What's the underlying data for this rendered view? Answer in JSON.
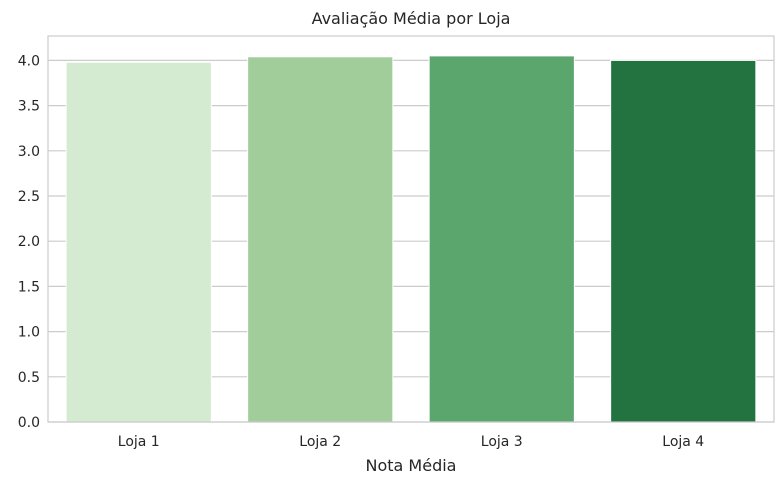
{
  "chart_data": {
    "type": "bar",
    "title": "Avaliação Média por Loja",
    "xlabel": "Nota Média",
    "ylabel": "",
    "categories": [
      "Loja 1",
      "Loja 2",
      "Loja 3",
      "Loja 4"
    ],
    "values": [
      3.98,
      4.04,
      4.05,
      4.0
    ],
    "colors": [
      "#d5ebd1",
      "#a0cd9a",
      "#5aa66d",
      "#22733f"
    ],
    "ylim": [
      0,
      4.27
    ],
    "yticks": [
      0.0,
      0.5,
      1.0,
      1.5,
      2.0,
      2.5,
      3.0,
      3.5,
      4.0
    ],
    "ytick_labels": [
      "0.0",
      "0.5",
      "1.0",
      "1.5",
      "2.0",
      "2.5",
      "3.0",
      "3.5",
      "4.0"
    ],
    "grid": true,
    "grid_axis": "y",
    "legend": false
  }
}
